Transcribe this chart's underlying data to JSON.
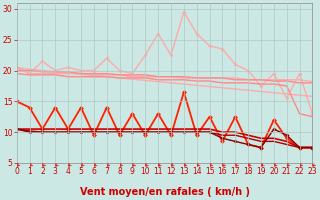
{
  "xlabel": "Vent moyen/en rafales ( km/h )",
  "bg_color": "#cce8e4",
  "grid_color": "#b0c8c4",
  "xlim": [
    0,
    23
  ],
  "ylim": [
    5,
    31
  ],
  "yticks": [
    5,
    10,
    15,
    20,
    25,
    30
  ],
  "xticks": [
    0,
    1,
    2,
    3,
    4,
    5,
    6,
    7,
    8,
    9,
    10,
    11,
    12,
    13,
    14,
    15,
    16,
    17,
    18,
    19,
    20,
    21,
    22,
    23
  ],
  "series": [
    {
      "x": [
        0,
        1,
        2,
        3,
        4,
        5,
        6,
        7,
        8,
        9,
        10,
        11,
        12,
        13,
        14,
        15,
        16,
        17,
        18,
        19,
        20,
        21,
        22,
        23
      ],
      "y": [
        20.5,
        20.2,
        20.0,
        19.8,
        19.6,
        19.4,
        19.2,
        19.0,
        18.8,
        18.6,
        18.4,
        18.2,
        18.0,
        17.8,
        17.6,
        17.4,
        17.2,
        17.0,
        16.8,
        16.6,
        16.4,
        16.2,
        16.0,
        15.8
      ],
      "color": "#ffaaaa",
      "lw": 1.0,
      "marker": null
    },
    {
      "x": [
        0,
        1,
        2,
        3,
        4,
        5,
        6,
        7,
        8,
        9,
        10,
        11,
        12,
        13,
        14,
        15,
        16,
        17,
        18,
        19,
        20,
        21,
        22,
        23
      ],
      "y": [
        20.5,
        19.5,
        19.5,
        19.5,
        19.5,
        19.5,
        19.3,
        19.3,
        19.3,
        19.0,
        19.0,
        19.0,
        19.0,
        18.8,
        18.8,
        18.8,
        18.8,
        18.8,
        18.5,
        18.5,
        18.5,
        18.5,
        18.5,
        18.2
      ],
      "color": "#ffaaaa",
      "lw": 1.0,
      "marker": null
    },
    {
      "x": [
        0,
        1,
        2,
        3,
        4,
        5,
        6,
        7,
        8,
        9,
        10,
        11,
        12,
        13,
        14,
        15,
        16,
        17,
        18,
        19,
        20,
        21,
        22,
        23
      ],
      "y": [
        20.5,
        19.5,
        21.5,
        20.0,
        20.5,
        20.0,
        20.0,
        22.0,
        20.0,
        19.5,
        22.5,
        26.0,
        22.5,
        29.5,
        26.0,
        24.0,
        23.5,
        21.0,
        20.0,
        17.5,
        19.5,
        15.5,
        19.5,
        13.0
      ],
      "color": "#ffaaaa",
      "lw": 1.0,
      "marker": "D",
      "ms": 2.0
    },
    {
      "x": [
        0,
        1,
        2,
        3,
        4,
        5,
        6,
        7,
        8,
        9,
        10,
        11,
        12,
        13,
        14,
        15,
        16,
        17,
        18,
        19,
        20,
        21,
        22,
        23
      ],
      "y": [
        20.0,
        20.0,
        19.8,
        19.8,
        19.8,
        19.5,
        19.5,
        19.5,
        19.3,
        19.3,
        19.3,
        19.0,
        19.0,
        19.0,
        18.8,
        18.8,
        18.8,
        18.5,
        18.5,
        18.5,
        18.3,
        18.3,
        18.0,
        18.0
      ],
      "color": "#ff8888",
      "lw": 1.0,
      "marker": null
    },
    {
      "x": [
        0,
        1,
        2,
        3,
        4,
        5,
        6,
        7,
        8,
        9,
        10,
        11,
        12,
        13,
        14,
        15,
        16,
        17,
        18,
        19,
        20,
        21,
        22,
        23
      ],
      "y": [
        19.5,
        19.3,
        19.3,
        19.3,
        19.0,
        19.0,
        19.0,
        19.0,
        18.8,
        18.8,
        18.8,
        18.5,
        18.5,
        18.5,
        18.3,
        18.3,
        18.0,
        18.0,
        18.0,
        17.8,
        17.8,
        17.5,
        13.0,
        12.5
      ],
      "color": "#ff8888",
      "lw": 1.0,
      "marker": null
    },
    {
      "x": [
        0,
        1,
        2,
        3,
        4,
        5,
        6,
        7,
        8,
        9,
        10,
        11,
        12,
        13,
        14,
        15,
        16,
        17,
        18,
        19,
        20,
        21,
        22,
        23
      ],
      "y": [
        15.0,
        14.0,
        10.5,
        14.0,
        10.5,
        14.0,
        9.5,
        14.0,
        9.5,
        13.0,
        9.5,
        13.0,
        9.5,
        16.5,
        9.5,
        12.5,
        8.5,
        12.5,
        8.0,
        7.5,
        12.0,
        9.0,
        7.5,
        7.5
      ],
      "color": "#ff2200",
      "lw": 1.3,
      "marker": "D",
      "ms": 2.5
    },
    {
      "x": [
        0,
        1,
        2,
        3,
        4,
        5,
        6,
        7,
        8,
        9,
        10,
        11,
        12,
        13,
        14,
        15,
        16,
        17,
        18,
        19,
        20,
        21,
        22,
        23
      ],
      "y": [
        10.5,
        10.5,
        10.5,
        10.5,
        10.5,
        10.5,
        10.5,
        10.5,
        10.5,
        10.5,
        10.5,
        10.5,
        10.5,
        10.5,
        10.5,
        10.5,
        10.0,
        10.0,
        9.5,
        9.0,
        9.0,
        8.5,
        7.5,
        7.5
      ],
      "color": "#cc0000",
      "lw": 1.2,
      "marker": null
    },
    {
      "x": [
        0,
        1,
        2,
        3,
        4,
        5,
        6,
        7,
        8,
        9,
        10,
        11,
        12,
        13,
        14,
        15,
        16,
        17,
        18,
        19,
        20,
        21,
        22,
        23
      ],
      "y": [
        10.5,
        10.2,
        10.0,
        10.0,
        10.0,
        10.0,
        10.0,
        10.0,
        10.0,
        10.0,
        10.0,
        10.0,
        10.0,
        10.0,
        10.0,
        10.0,
        9.5,
        9.5,
        9.0,
        8.5,
        8.5,
        8.0,
        7.5,
        7.5
      ],
      "color": "#aa0000",
      "lw": 1.0,
      "marker": null
    },
    {
      "x": [
        0,
        1,
        2,
        3,
        4,
        5,
        6,
        7,
        8,
        9,
        10,
        11,
        12,
        13,
        14,
        15,
        16,
        17,
        18,
        19,
        20,
        21,
        22,
        23
      ],
      "y": [
        10.5,
        10.0,
        10.0,
        10.0,
        10.0,
        10.0,
        10.0,
        10.0,
        10.0,
        10.0,
        10.0,
        10.0,
        10.0,
        10.0,
        10.0,
        10.0,
        9.0,
        8.5,
        8.0,
        7.5,
        10.5,
        9.5,
        7.5,
        7.5
      ],
      "color": "#880000",
      "lw": 1.0,
      "marker": "D",
      "ms": 2.0
    }
  ],
  "arrow_color": "#dd2222",
  "xlabel_color": "#cc0000",
  "xlabel_fontsize": 7,
  "tick_fontsize": 5.5,
  "tick_color": "#cc0000"
}
